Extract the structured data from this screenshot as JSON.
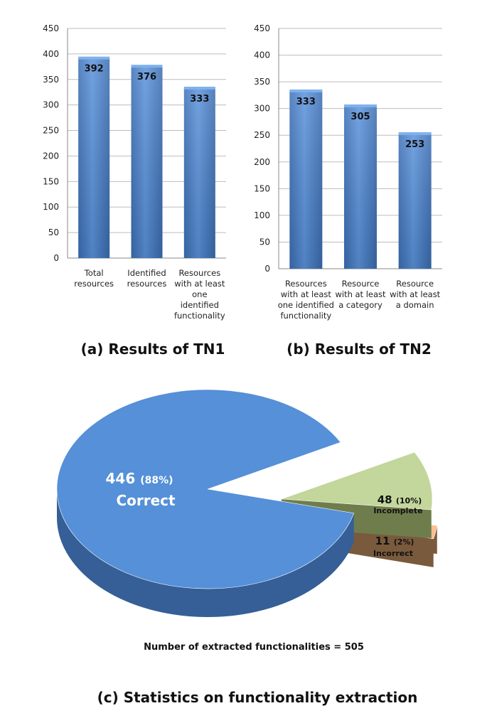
{
  "chart_data": [
    {
      "type": "bar",
      "title": "(a) Results of TN1",
      "ylim": [
        0,
        450
      ],
      "yticks": [
        0,
        50,
        100,
        150,
        200,
        250,
        300,
        350,
        400,
        450
      ],
      "grid": true,
      "bar_color": "#4a7fc6",
      "categories": [
        [
          "Total",
          "resources"
        ],
        [
          "Identified",
          "resources"
        ],
        [
          "Resources",
          "with at least",
          "one",
          "identified",
          "functionality"
        ]
      ],
      "values": [
        392,
        376,
        333
      ]
    },
    {
      "type": "bar",
      "title": "(b) Results of TN2",
      "ylim": [
        0,
        450
      ],
      "yticks": [
        0,
        50,
        100,
        150,
        200,
        250,
        300,
        350,
        400,
        450
      ],
      "grid": true,
      "bar_color": "#4a7fc6",
      "categories": [
        [
          "Resources",
          "with at least",
          "one identified",
          "functionality"
        ],
        [
          "Resource",
          "with at least",
          "a category"
        ],
        [
          "Resource",
          "with at least",
          "a domain"
        ]
      ],
      "values": [
        333,
        305,
        253
      ]
    },
    {
      "type": "pie",
      "title": "(c) Statistics on functionality extraction",
      "note": "Number of extracted functionalities = 505",
      "slices": [
        {
          "label": "Correct",
          "value": 446,
          "percent_text": "(88%)",
          "color": "#5590d8",
          "side_color": "#355f96"
        },
        {
          "label": "Incomplete",
          "value": 48,
          "percent_text": "(10%)",
          "color": "#c3d69b",
          "side_color": "#6f7d4c"
        },
        {
          "label": "Incorrect",
          "value": 11,
          "percent_text": "(2%)",
          "color": "#fac090",
          "side_color": "#7a5a3c"
        }
      ]
    }
  ]
}
